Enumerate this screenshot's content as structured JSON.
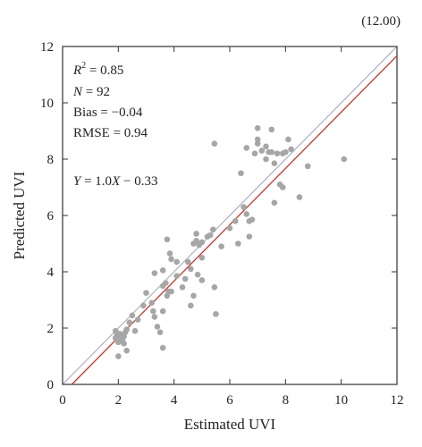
{
  "corner_label": "(12.00)",
  "chart_data": {
    "type": "scatter",
    "xlabel": "Estimated UVI",
    "ylabel": "Predicted UVI",
    "xlim": [
      0,
      12
    ],
    "ylim": [
      0,
      12
    ],
    "xticks": [
      "0",
      "2",
      "4",
      "6",
      "8",
      "10",
      "12"
    ],
    "yticks": [
      "0",
      "2",
      "4",
      "6",
      "8",
      "10",
      "12"
    ],
    "grid": false,
    "annotations": {
      "r2_label": "R",
      "r2_exp": "2",
      "r2_value": " = 0.85",
      "n_label": "N",
      "n_value": " = 92",
      "bias": "Bias = −0.04",
      "rmse": "RMSE = 0.94",
      "fit_y": "Y",
      "fit_mid": " = 1.0",
      "fit_x": "X",
      "fit_end": " − 0.33"
    },
    "reference_line": {
      "name": "1:1",
      "x": [
        0,
        12
      ],
      "y": [
        0,
        12
      ],
      "color": "#a9a9b8"
    },
    "fit_line": {
      "slope": 1.0,
      "intercept": -0.33,
      "color": "#c0392b"
    },
    "point_color": "#a6a6a6",
    "points": [
      [
        1.9,
        1.9
      ],
      [
        1.95,
        1.75
      ],
      [
        2.0,
        1.6
      ],
      [
        2.0,
        1.5
      ],
      [
        2.05,
        1.8
      ],
      [
        2.1,
        1.65
      ],
      [
        2.15,
        1.55
      ],
      [
        2.2,
        1.7
      ],
      [
        2.25,
        1.85
      ],
      [
        2.0,
        1.0
      ],
      [
        2.3,
        1.2
      ],
      [
        2.3,
        1.95
      ],
      [
        2.4,
        2.2
      ],
      [
        2.5,
        2.45
      ],
      [
        1.9,
        1.65
      ],
      [
        2.6,
        1.9
      ],
      [
        2.7,
        2.3
      ],
      [
        2.9,
        2.8
      ],
      [
        3.0,
        3.25
      ],
      [
        3.2,
        2.9
      ],
      [
        3.25,
        2.6
      ],
      [
        3.3,
        2.4
      ],
      [
        3.4,
        2.05
      ],
      [
        3.5,
        1.85
      ],
      [
        3.3,
        3.95
      ],
      [
        3.6,
        4.05
      ],
      [
        3.6,
        3.5
      ],
      [
        3.7,
        3.6
      ],
      [
        3.75,
        3.15
      ],
      [
        3.8,
        3.3
      ],
      [
        3.6,
        2.6
      ],
      [
        3.6,
        1.3
      ],
      [
        3.9,
        3.3
      ],
      [
        4.1,
        4.35
      ],
      [
        4.1,
        3.85
      ],
      [
        3.85,
        4.65
      ],
      [
        3.75,
        5.15
      ],
      [
        3.9,
        4.45
      ],
      [
        4.3,
        3.45
      ],
      [
        4.4,
        3.75
      ],
      [
        4.5,
        4.35
      ],
      [
        4.6,
        4.1
      ],
      [
        4.7,
        5.0
      ],
      [
        4.8,
        5.1
      ],
      [
        4.9,
        4.95
      ],
      [
        4.8,
        5.35
      ],
      [
        4.6,
        2.8
      ],
      [
        4.7,
        3.15
      ],
      [
        4.85,
        3.9
      ],
      [
        5.0,
        3.7
      ],
      [
        5.0,
        4.5
      ],
      [
        5.0,
        5.05
      ],
      [
        5.2,
        5.25
      ],
      [
        5.3,
        5.3
      ],
      [
        5.4,
        5.5
      ],
      [
        5.45,
        3.45
      ],
      [
        5.5,
        2.5
      ],
      [
        5.45,
        8.55
      ],
      [
        6.2,
        5.8
      ],
      [
        6.3,
        5.0
      ],
      [
        6.4,
        7.5
      ],
      [
        6.5,
        6.3
      ],
      [
        6.6,
        6.05
      ],
      [
        6.7,
        5.8
      ],
      [
        6.7,
        5.25
      ],
      [
        6.8,
        5.85
      ],
      [
        6.6,
        8.4
      ],
      [
        6.9,
        8.2
      ],
      [
        7.0,
        8.55
      ],
      [
        7.0,
        8.7
      ],
      [
        7.0,
        9.1
      ],
      [
        7.3,
        8.45
      ],
      [
        7.3,
        8.0
      ],
      [
        7.4,
        8.25
      ],
      [
        7.5,
        8.25
      ],
      [
        7.5,
        9.05
      ],
      [
        7.6,
        7.85
      ],
      [
        7.7,
        8.2
      ],
      [
        7.6,
        6.45
      ],
      [
        7.8,
        7.1
      ],
      [
        7.9,
        7.0
      ],
      [
        7.9,
        8.2
      ],
      [
        8.0,
        8.25
      ],
      [
        8.1,
        8.7
      ],
      [
        8.2,
        8.35
      ],
      [
        8.5,
        6.65
      ],
      [
        8.8,
        7.75
      ],
      [
        10.1,
        8.0
      ],
      [
        5.7,
        4.9
      ],
      [
        6.0,
        5.55
      ],
      [
        7.15,
        8.3
      ],
      [
        2.2,
        1.45
      ]
    ]
  }
}
